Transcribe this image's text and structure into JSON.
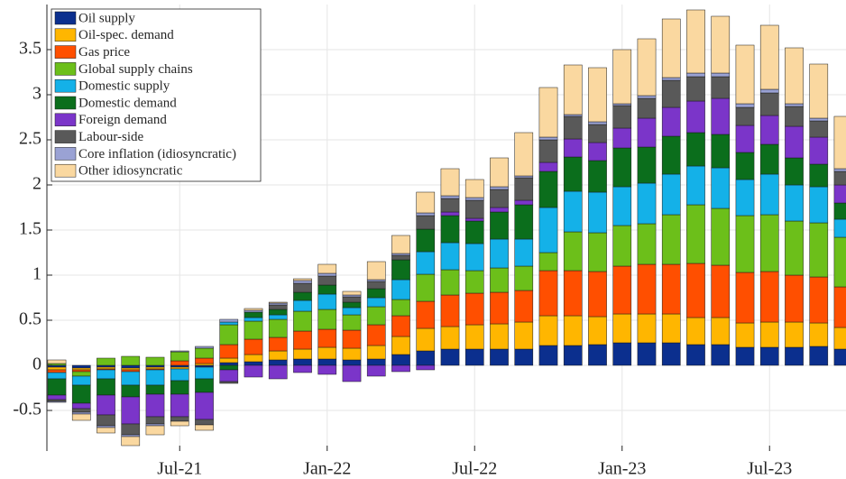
{
  "chart_data": {
    "type": "stacked_bar",
    "categories": [
      null,
      null,
      null,
      null,
      null,
      "Jul-21",
      null,
      null,
      null,
      null,
      null,
      "Jan-22",
      null,
      null,
      null,
      null,
      null,
      "Jul-22",
      null,
      null,
      null,
      null,
      null,
      "Jan-23",
      null,
      null,
      null,
      null,
      null,
      "Jul-23",
      null,
      null,
      null
    ],
    "ylim": [
      -0.95,
      4.0
    ],
    "yticks": [
      -0.5,
      0,
      0.5,
      1,
      1.5,
      2,
      2.5,
      3,
      3.5
    ],
    "grid": true,
    "legend": "upper left",
    "series": [
      {
        "name": "Oil supply",
        "color": "#0b2f8e",
        "values": [
          -0.02,
          -0.03,
          -0.02,
          -0.03,
          -0.02,
          -0.02,
          -0.02,
          0.03,
          0.04,
          0.06,
          0.07,
          0.07,
          0.06,
          0.07,
          0.12,
          0.16,
          0.18,
          0.18,
          0.18,
          0.18,
          0.22,
          0.22,
          0.23,
          0.25,
          0.25,
          0.25,
          0.23,
          0.23,
          0.2,
          0.2,
          0.2,
          0.21,
          0.18
        ]
      },
      {
        "name": "Oil-spec. demand",
        "color": "#ffb600",
        "values": [
          -0.03,
          -0.02,
          -0.02,
          -0.02,
          -0.02,
          -0.02,
          0.02,
          0.05,
          0.08,
          0.1,
          0.11,
          0.13,
          0.13,
          0.15,
          0.2,
          0.25,
          0.25,
          0.27,
          0.28,
          0.3,
          0.33,
          0.33,
          0.31,
          0.32,
          0.32,
          0.32,
          0.3,
          0.3,
          0.27,
          0.28,
          0.28,
          0.26,
          0.24
        ]
      },
      {
        "name": "Gas price",
        "color": "#ff4f00",
        "values": [
          -0.03,
          -0.02,
          -0.01,
          -0.02,
          -0.01,
          0.05,
          0.06,
          0.15,
          0.17,
          0.15,
          0.2,
          0.2,
          0.2,
          0.23,
          0.23,
          0.3,
          0.35,
          0.35,
          0.35,
          0.35,
          0.5,
          0.5,
          0.5,
          0.53,
          0.55,
          0.55,
          0.6,
          0.58,
          0.56,
          0.56,
          0.52,
          0.51,
          0.45
        ]
      },
      {
        "name": "Global supply chains",
        "color": "#6cbf1a",
        "values": [
          0.02,
          -0.05,
          0.08,
          0.1,
          0.09,
          0.1,
          0.11,
          0.22,
          0.2,
          0.2,
          0.22,
          0.22,
          0.17,
          0.2,
          0.18,
          0.3,
          0.28,
          0.25,
          0.27,
          0.27,
          0.2,
          0.43,
          0.43,
          0.45,
          0.45,
          0.55,
          0.65,
          0.63,
          0.63,
          0.63,
          0.6,
          0.6,
          0.55
        ]
      },
      {
        "name": "Domestic supply",
        "color": "#14b1e8",
        "values": [
          -0.07,
          -0.1,
          -0.1,
          -0.15,
          -0.17,
          -0.13,
          -0.13,
          0.03,
          0.04,
          0.05,
          0.12,
          0.17,
          0.08,
          0.1,
          0.22,
          0.25,
          0.3,
          0.3,
          0.32,
          0.3,
          0.5,
          0.45,
          0.45,
          0.43,
          0.45,
          0.45,
          0.43,
          0.45,
          0.4,
          0.45,
          0.4,
          0.4,
          0.2
        ]
      },
      {
        "name": "Domestic demand",
        "color": "#0b6e1c",
        "values": [
          -0.18,
          -0.2,
          -0.18,
          -0.13,
          -0.1,
          -0.15,
          -0.15,
          -0.05,
          0.06,
          0.06,
          0.09,
          0.1,
          0.06,
          0.1,
          0.22,
          0.25,
          0.3,
          0.25,
          0.3,
          0.38,
          0.4,
          0.38,
          0.35,
          0.43,
          0.4,
          0.42,
          0.37,
          0.37,
          0.3,
          0.33,
          0.3,
          0.25,
          0.18
        ]
      },
      {
        "name": "Foreign demand",
        "color": "#7b35c9",
        "values": [
          -0.05,
          -0.06,
          -0.22,
          -0.3,
          -0.25,
          -0.25,
          -0.3,
          -0.13,
          -0.13,
          -0.15,
          -0.08,
          -0.1,
          -0.18,
          -0.12,
          -0.07,
          -0.05,
          0.04,
          0.03,
          0.05,
          0.05,
          0.1,
          0.2,
          0.2,
          0.22,
          0.32,
          0.32,
          0.35,
          0.4,
          0.3,
          0.32,
          0.35,
          0.3,
          0.2
        ]
      },
      {
        "name": "Labour-side",
        "color": "#595959",
        "values": [
          -0.02,
          -0.04,
          -0.12,
          -0.12,
          -0.08,
          -0.05,
          -0.06,
          -0.02,
          0.0,
          0.05,
          0.1,
          0.1,
          0.06,
          0.08,
          0.05,
          0.15,
          0.15,
          0.2,
          0.2,
          0.25,
          0.25,
          0.25,
          0.2,
          0.25,
          0.22,
          0.3,
          0.27,
          0.24,
          0.2,
          0.25,
          0.22,
          0.18,
          0.15
        ]
      },
      {
        "name": "Core inflation (idiosyncratic)",
        "color": "#9aa2d4",
        "values": [
          -0.01,
          -0.02,
          -0.02,
          -0.02,
          -0.02,
          0.01,
          0.02,
          0.03,
          0.02,
          0.02,
          0.03,
          0.03,
          0.02,
          0.02,
          0.02,
          0.03,
          0.03,
          0.03,
          0.03,
          0.02,
          0.03,
          0.02,
          0.03,
          0.02,
          0.03,
          0.03,
          0.04,
          0.04,
          0.04,
          0.04,
          0.03,
          0.03,
          0.03
        ]
      },
      {
        "name": "Other idiosyncratic",
        "color": "#fad8a0",
        "values": [
          0.04,
          -0.07,
          -0.06,
          -0.1,
          -0.1,
          -0.05,
          -0.06,
          0.0,
          0.02,
          0.01,
          0.02,
          0.1,
          0.04,
          0.2,
          0.2,
          0.23,
          0.3,
          0.2,
          0.32,
          0.48,
          0.55,
          0.55,
          0.6,
          0.6,
          0.63,
          0.65,
          0.7,
          0.63,
          0.65,
          0.71,
          0.62,
          0.6,
          0.58
        ]
      }
    ]
  }
}
